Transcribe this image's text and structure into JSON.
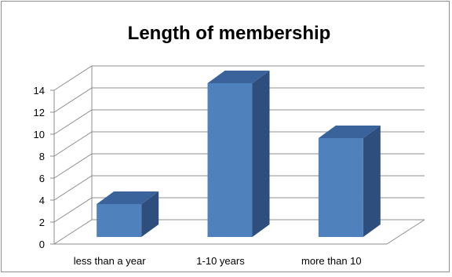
{
  "chart_data": {
    "type": "bar",
    "title": "Length of membership",
    "categories": [
      "less than a year",
      "1-10 years",
      "more than 10"
    ],
    "values": [
      3,
      14,
      9
    ],
    "ylim": [
      0,
      14
    ],
    "yticks": [
      0,
      2,
      4,
      6,
      8,
      10,
      12,
      14
    ],
    "xlabel": "",
    "ylabel": "",
    "grid": true,
    "legend": "none",
    "three_d": true,
    "colors": {
      "bar_front": "#4f81bd",
      "bar_side": "#2e4f7e",
      "bar_top": "#3a639c",
      "gridline": "#8c8c8c",
      "text": "#000000"
    }
  }
}
